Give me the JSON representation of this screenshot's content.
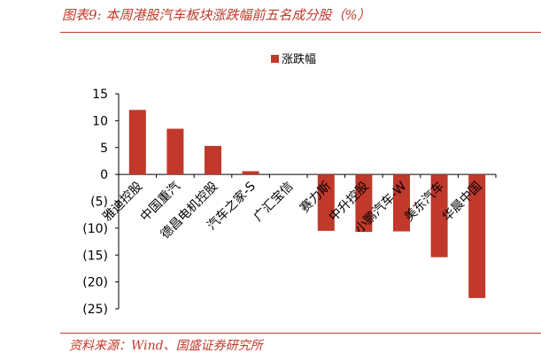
{
  "header": {
    "title": "图表9:  本周港股汽车板块涨跌幅前五名成分股（%）"
  },
  "footer": {
    "source": "资料来源：Wind、国盛证券研究所"
  },
  "colors": {
    "bar": "#c0392b",
    "accent": "#c0392b"
  },
  "chart_data": {
    "type": "bar",
    "title": "",
    "xlabel": "",
    "ylabel": "",
    "ylim": [
      -25,
      15
    ],
    "yticks": [
      15,
      10,
      5,
      0,
      -5,
      -10,
      -15,
      -20,
      -25
    ],
    "ytick_labels": [
      "15",
      "10",
      "5",
      "0",
      "(5)",
      "(10)",
      "(15)",
      "(20)",
      "(25)"
    ],
    "legend_position": "top-center",
    "grid": false,
    "categories": [
      "雅迪控股",
      "中国重汽",
      "德昌电机控股",
      "汽车之家-S",
      "广汇宝信",
      "赛力斯",
      "中升控股",
      "小鹏汽车-W",
      "美东汽车",
      "华晨中国"
    ],
    "series": [
      {
        "name": "涨跌幅",
        "values": [
          12.0,
          8.5,
          5.3,
          0.6,
          0.0,
          -10.5,
          -10.7,
          -10.6,
          -15.4,
          -23.0
        ]
      }
    ]
  }
}
